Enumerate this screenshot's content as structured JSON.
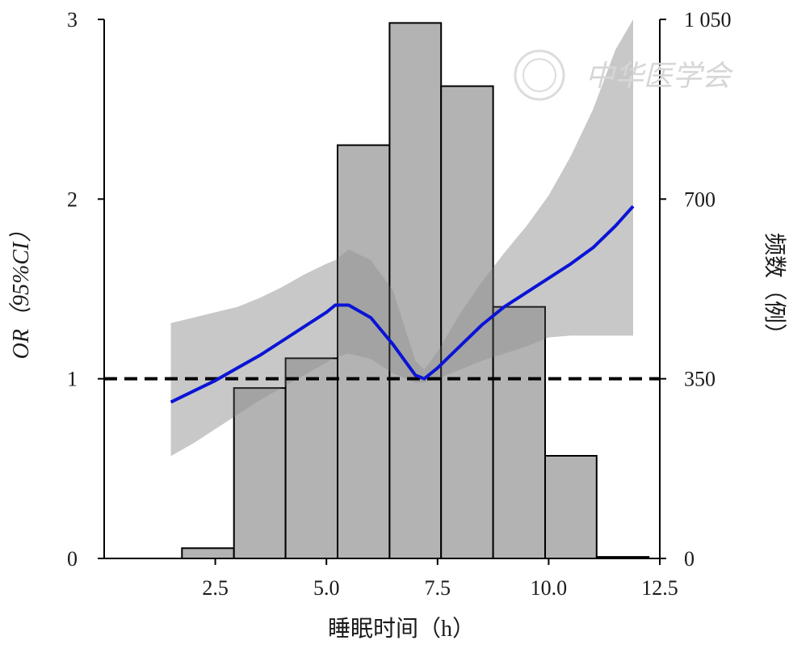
{
  "chart_data": {
    "type": "bar",
    "subtype": "histogram with restricted cubic spline overlay",
    "title": "",
    "xlabel": "睡眠时间（h）",
    "ylabel_left": "OR（95%CI）",
    "ylabel_right": "频数（例）",
    "xlim": [
      0,
      12.5
    ],
    "ylim_left": [
      0,
      3
    ],
    "ylim_right": [
      0,
      1050
    ],
    "x_ticks": [
      2.5,
      5.0,
      7.5,
      10.0,
      12.5
    ],
    "x_tick_labels": [
      "2.5",
      "5.0",
      "7.5",
      "10.0",
      "12.5"
    ],
    "y_left_ticks": [
      0,
      1,
      2,
      3
    ],
    "y_left_tick_labels": [
      "0",
      "1",
      "2",
      "3"
    ],
    "y_right_ticks": [
      0,
      350,
      700,
      1050
    ],
    "y_right_tick_labels": [
      "0",
      "350",
      "700",
      "1 050"
    ],
    "grid": false,
    "histogram": {
      "bins": [
        {
          "x0": 1.75,
          "x1": 2.92,
          "count": 20
        },
        {
          "x0": 2.92,
          "x1": 4.08,
          "count": 332
        },
        {
          "x0": 4.08,
          "x1": 5.25,
          "count": 390
        },
        {
          "x0": 5.25,
          "x1": 6.42,
          "count": 805
        },
        {
          "x0": 6.42,
          "x1": 7.58,
          "count": 1043
        },
        {
          "x0": 7.58,
          "x1": 8.75,
          "count": 920
        },
        {
          "x0": 8.75,
          "x1": 9.92,
          "count": 490
        },
        {
          "x0": 9.92,
          "x1": 11.08,
          "count": 200
        },
        {
          "x0": 11.08,
          "x1": 12.25,
          "count": 3
        }
      ]
    },
    "spline": {
      "name": "",
      "color": "#0a14d6",
      "x": [
        1.5,
        2.0,
        2.5,
        3.0,
        3.5,
        4.0,
        4.5,
        5.0,
        5.2,
        5.5,
        6.0,
        6.5,
        7.0,
        7.2,
        7.5,
        8.0,
        8.5,
        9.0,
        9.5,
        10.0,
        10.5,
        11.0,
        11.5,
        11.9
      ],
      "y": [
        0.87,
        0.93,
        0.99,
        1.06,
        1.13,
        1.21,
        1.29,
        1.37,
        1.41,
        1.41,
        1.34,
        1.19,
        1.02,
        1.0,
        1.06,
        1.18,
        1.3,
        1.4,
        1.48,
        1.56,
        1.64,
        1.73,
        1.85,
        1.96
      ],
      "ci_lower": [
        0.57,
        0.64,
        0.72,
        0.8,
        0.88,
        0.95,
        1.02,
        1.09,
        1.12,
        1.14,
        1.11,
        1.03,
        0.98,
        0.98,
        1.0,
        1.05,
        1.1,
        1.14,
        1.18,
        1.23,
        1.24,
        1.24,
        1.24,
        1.24
      ],
      "ci_upper": [
        1.31,
        1.34,
        1.37,
        1.4,
        1.45,
        1.51,
        1.58,
        1.64,
        1.66,
        1.72,
        1.66,
        1.49,
        1.1,
        1.05,
        1.15,
        1.36,
        1.54,
        1.7,
        1.85,
        2.02,
        2.24,
        2.5,
        2.83,
        3.0
      ]
    },
    "reference_line": {
      "y": 1,
      "style": "dashed",
      "color": "#000000"
    },
    "colors": {
      "bar_fill": "#b3b3b3",
      "bar_stroke": "#000000",
      "ci_band": "#d2d2d2",
      "line": "#0a14d6"
    },
    "watermark_text": "中华医学会"
  }
}
